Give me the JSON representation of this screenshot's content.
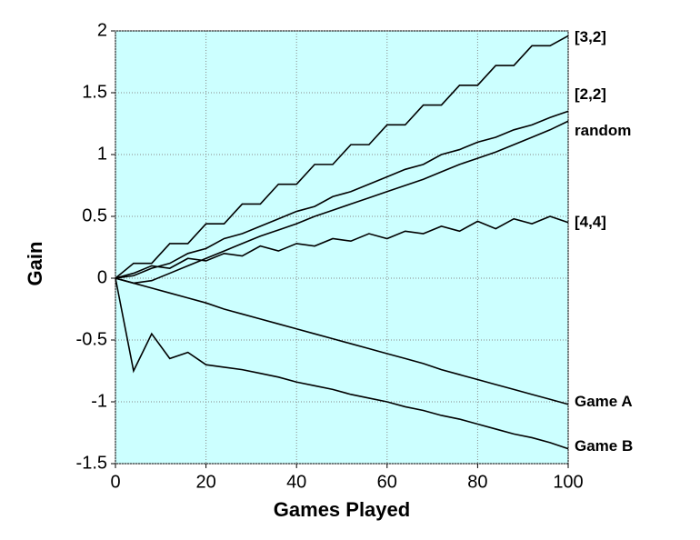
{
  "chart_data": {
    "type": "line",
    "x_label": "Games Played",
    "y_label": "Gain",
    "x": [
      0,
      4,
      8,
      12,
      16,
      20,
      24,
      28,
      32,
      36,
      40,
      44,
      48,
      52,
      56,
      60,
      64,
      68,
      72,
      76,
      80,
      84,
      88,
      92,
      96,
      100
    ],
    "series": [
      {
        "name": "[3,2]",
        "color": "#000000",
        "values": [
          0,
          0.12,
          0.12,
          0.28,
          0.28,
          0.44,
          0.44,
          0.6,
          0.6,
          0.76,
          0.76,
          0.92,
          0.92,
          1.08,
          1.08,
          1.24,
          1.24,
          1.4,
          1.4,
          1.56,
          1.56,
          1.72,
          1.72,
          1.88,
          1.88,
          1.96
        ]
      },
      {
        "name": "[2,2]",
        "color": "#000000",
        "values": [
          0,
          0.02,
          0.08,
          0.12,
          0.2,
          0.24,
          0.32,
          0.36,
          0.42,
          0.48,
          0.54,
          0.58,
          0.66,
          0.7,
          0.76,
          0.82,
          0.88,
          0.92,
          1.0,
          1.04,
          1.1,
          1.14,
          1.2,
          1.24,
          1.3,
          1.35
        ]
      },
      {
        "name": "random",
        "color": "#000000",
        "values": [
          0,
          -0.04,
          -0.02,
          0.04,
          0.1,
          0.16,
          0.22,
          0.28,
          0.34,
          0.39,
          0.44,
          0.5,
          0.55,
          0.6,
          0.65,
          0.7,
          0.75,
          0.8,
          0.86,
          0.92,
          0.97,
          1.02,
          1.08,
          1.14,
          1.2,
          1.27
        ]
      },
      {
        "name": "[4,4]",
        "color": "#000000",
        "values": [
          0,
          0.04,
          0.1,
          0.08,
          0.16,
          0.14,
          0.2,
          0.18,
          0.26,
          0.22,
          0.28,
          0.26,
          0.32,
          0.3,
          0.36,
          0.32,
          0.38,
          0.36,
          0.42,
          0.38,
          0.46,
          0.4,
          0.48,
          0.44,
          0.5,
          0.45
        ]
      },
      {
        "name": "Game A",
        "color": "#000000",
        "values": [
          0,
          -0.04,
          -0.08,
          -0.12,
          -0.16,
          -0.2,
          -0.25,
          -0.29,
          -0.33,
          -0.37,
          -0.41,
          -0.45,
          -0.49,
          -0.53,
          -0.57,
          -0.61,
          -0.65,
          -0.69,
          -0.74,
          -0.78,
          -0.82,
          -0.86,
          -0.9,
          -0.94,
          -0.98,
          -1.02
        ]
      },
      {
        "name": "Game B",
        "color": "#000000",
        "values": [
          0,
          -0.75,
          -0.45,
          -0.65,
          -0.6,
          -0.7,
          -0.72,
          -0.74,
          -0.77,
          -0.8,
          -0.84,
          -0.87,
          -0.9,
          -0.94,
          -0.97,
          -1.0,
          -1.04,
          -1.07,
          -1.11,
          -1.14,
          -1.18,
          -1.22,
          -1.26,
          -1.29,
          -1.33,
          -1.38
        ]
      }
    ],
    "xlim": [
      0,
      100
    ],
    "xticks": [
      0,
      20,
      40,
      60,
      80,
      100
    ],
    "ylim": [
      -1.5,
      2
    ],
    "yticks": [
      -1.5,
      -1,
      -0.5,
      0,
      0.5,
      1,
      1.5,
      2
    ],
    "grid": true,
    "background": "#ccffff"
  }
}
